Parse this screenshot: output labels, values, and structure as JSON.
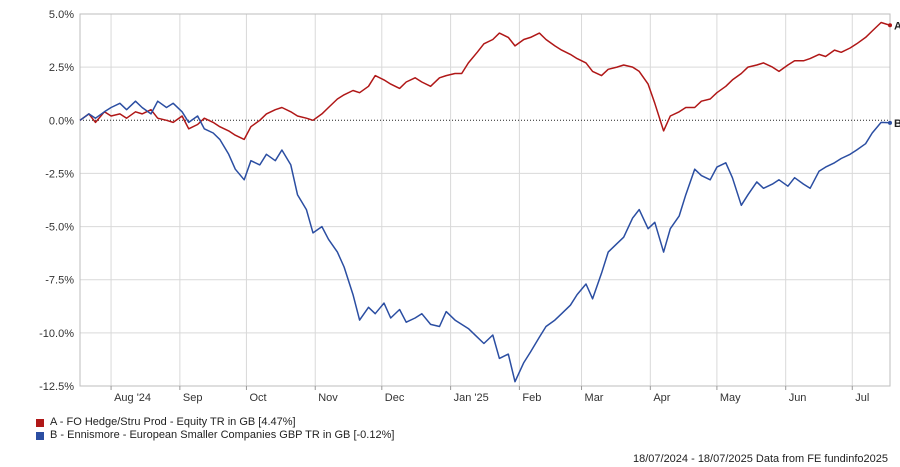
{
  "chart_data": {
    "type": "line",
    "title": "",
    "xlabel": "",
    "ylabel": "",
    "ylim": [
      -12.5,
      5.0
    ],
    "y_ticks": [
      {
        "value": 5.0,
        "label": "5.0%"
      },
      {
        "value": 2.5,
        "label": "2.5%"
      },
      {
        "value": 0.0,
        "label": "0.0%"
      },
      {
        "value": -2.5,
        "label": "-2.5%"
      },
      {
        "value": -5.0,
        "label": "-5.0%"
      },
      {
        "value": -7.5,
        "label": "-7.5%"
      },
      {
        "value": -10.0,
        "label": "-10.0%"
      },
      {
        "value": -12.5,
        "label": "-12.5%"
      }
    ],
    "x_range": [
      "2024-07-18",
      "2025-07-18"
    ],
    "x_ticks": [
      {
        "date": "2024-08-01",
        "label": "Aug '24"
      },
      {
        "date": "2024-09-01",
        "label": "Sep"
      },
      {
        "date": "2024-10-01",
        "label": "Oct"
      },
      {
        "date": "2024-11-01",
        "label": "Nov"
      },
      {
        "date": "2024-12-01",
        "label": "Dec"
      },
      {
        "date": "2025-01-01",
        "label": "Jan '25"
      },
      {
        "date": "2025-02-01",
        "label": "Feb"
      },
      {
        "date": "2025-03-01",
        "label": "Mar"
      },
      {
        "date": "2025-04-01",
        "label": "Apr"
      },
      {
        "date": "2025-05-01",
        "label": "May"
      },
      {
        "date": "2025-06-01",
        "label": "Jun"
      },
      {
        "date": "2025-07-01",
        "label": "Jul"
      }
    ],
    "grid": true,
    "zero_line": "dotted",
    "legend_position": "bottom-left",
    "series": [
      {
        "id": "A",
        "name": "A - FO Hedge/Stru Prod - Equity TR in GB [4.47%]",
        "end_label": "A",
        "color": "#b01717",
        "x": [
          "2024-07-18",
          "2024-07-22",
          "2024-07-25",
          "2024-07-29",
          "2024-08-01",
          "2024-08-05",
          "2024-08-08",
          "2024-08-12",
          "2024-08-15",
          "2024-08-19",
          "2024-08-22",
          "2024-08-26",
          "2024-08-29",
          "2024-09-02",
          "2024-09-05",
          "2024-09-09",
          "2024-09-12",
          "2024-09-16",
          "2024-09-19",
          "2024-09-23",
          "2024-09-26",
          "2024-09-30",
          "2024-10-03",
          "2024-10-07",
          "2024-10-10",
          "2024-10-14",
          "2024-10-17",
          "2024-10-21",
          "2024-10-24",
          "2024-10-28",
          "2024-10-31",
          "2024-11-04",
          "2024-11-07",
          "2024-11-11",
          "2024-11-14",
          "2024-11-18",
          "2024-11-21",
          "2024-11-25",
          "2024-11-28",
          "2024-12-02",
          "2024-12-05",
          "2024-12-09",
          "2024-12-12",
          "2024-12-16",
          "2024-12-19",
          "2024-12-23",
          "2024-12-27",
          "2024-12-30",
          "2025-01-03",
          "2025-01-06",
          "2025-01-09",
          "2025-01-13",
          "2025-01-16",
          "2025-01-20",
          "2025-01-23",
          "2025-01-27",
          "2025-01-30",
          "2025-02-03",
          "2025-02-06",
          "2025-02-10",
          "2025-02-13",
          "2025-02-17",
          "2025-02-20",
          "2025-02-24",
          "2025-02-27",
          "2025-03-03",
          "2025-03-06",
          "2025-03-10",
          "2025-03-13",
          "2025-03-17",
          "2025-03-20",
          "2025-03-24",
          "2025-03-27",
          "2025-03-31",
          "2025-04-03",
          "2025-04-07",
          "2025-04-10",
          "2025-04-14",
          "2025-04-17",
          "2025-04-21",
          "2025-04-24",
          "2025-04-28",
          "2025-05-01",
          "2025-05-05",
          "2025-05-08",
          "2025-05-12",
          "2025-05-15",
          "2025-05-19",
          "2025-05-22",
          "2025-05-26",
          "2025-05-29",
          "2025-06-02",
          "2025-06-05",
          "2025-06-09",
          "2025-06-12",
          "2025-06-16",
          "2025-06-19",
          "2025-06-23",
          "2025-06-26",
          "2025-06-30",
          "2025-07-03",
          "2025-07-07",
          "2025-07-10",
          "2025-07-14",
          "2025-07-18"
        ],
        "values": [
          0.0,
          0.3,
          -0.1,
          0.4,
          0.2,
          0.3,
          0.1,
          0.4,
          0.3,
          0.5,
          0.1,
          0.0,
          -0.1,
          0.2,
          -0.4,
          -0.2,
          0.1,
          -0.1,
          -0.3,
          -0.5,
          -0.7,
          -0.9,
          -0.3,
          0.0,
          0.3,
          0.5,
          0.6,
          0.4,
          0.2,
          0.1,
          0.0,
          0.3,
          0.6,
          1.0,
          1.2,
          1.4,
          1.3,
          1.6,
          2.1,
          1.9,
          1.7,
          1.5,
          1.8,
          2.0,
          1.8,
          1.6,
          2.0,
          2.1,
          2.2,
          2.2,
          2.7,
          3.2,
          3.6,
          3.8,
          4.1,
          3.9,
          3.5,
          3.8,
          3.9,
          4.1,
          3.8,
          3.5,
          3.3,
          3.1,
          2.9,
          2.7,
          2.3,
          2.1,
          2.4,
          2.5,
          2.6,
          2.5,
          2.3,
          1.7,
          0.8,
          -0.5,
          0.2,
          0.4,
          0.6,
          0.6,
          0.9,
          1.0,
          1.3,
          1.6,
          1.9,
          2.2,
          2.5,
          2.6,
          2.7,
          2.5,
          2.3,
          2.6,
          2.8,
          2.8,
          2.9,
          3.1,
          3.0,
          3.3,
          3.2,
          3.4,
          3.6,
          3.9,
          4.2,
          4.6,
          4.47
        ]
      },
      {
        "id": "B",
        "name": "B - Ennismore - European Smaller Companies GBP TR in GB [-0.12%]",
        "end_label": "B",
        "color": "#2b4ea2",
        "x": [
          "2024-07-18",
          "2024-07-22",
          "2024-07-25",
          "2024-07-29",
          "2024-08-01",
          "2024-08-05",
          "2024-08-08",
          "2024-08-12",
          "2024-08-15",
          "2024-08-19",
          "2024-08-22",
          "2024-08-26",
          "2024-08-29",
          "2024-09-02",
          "2024-09-05",
          "2024-09-09",
          "2024-09-12",
          "2024-09-16",
          "2024-09-19",
          "2024-09-23",
          "2024-09-26",
          "2024-09-30",
          "2024-10-03",
          "2024-10-07",
          "2024-10-10",
          "2024-10-14",
          "2024-10-17",
          "2024-10-21",
          "2024-10-24",
          "2024-10-28",
          "2024-10-31",
          "2024-11-04",
          "2024-11-07",
          "2024-11-11",
          "2024-11-14",
          "2024-11-18",
          "2024-11-21",
          "2024-11-25",
          "2024-11-28",
          "2024-12-02",
          "2024-12-05",
          "2024-12-09",
          "2024-12-12",
          "2024-12-16",
          "2024-12-19",
          "2024-12-23",
          "2024-12-27",
          "2024-12-30",
          "2025-01-03",
          "2025-01-06",
          "2025-01-09",
          "2025-01-13",
          "2025-01-16",
          "2025-01-20",
          "2025-01-23",
          "2025-01-27",
          "2025-01-30",
          "2025-02-03",
          "2025-02-06",
          "2025-02-10",
          "2025-02-13",
          "2025-02-17",
          "2025-02-20",
          "2025-02-24",
          "2025-02-27",
          "2025-03-03",
          "2025-03-06",
          "2025-03-10",
          "2025-03-13",
          "2025-03-17",
          "2025-03-20",
          "2025-03-24",
          "2025-03-27",
          "2025-03-31",
          "2025-04-03",
          "2025-04-07",
          "2025-04-10",
          "2025-04-14",
          "2025-04-17",
          "2025-04-21",
          "2025-04-24",
          "2025-04-28",
          "2025-05-01",
          "2025-05-05",
          "2025-05-08",
          "2025-05-12",
          "2025-05-15",
          "2025-05-19",
          "2025-05-22",
          "2025-05-26",
          "2025-05-29",
          "2025-06-02",
          "2025-06-05",
          "2025-06-09",
          "2025-06-12",
          "2025-06-16",
          "2025-06-19",
          "2025-06-23",
          "2025-06-26",
          "2025-06-30",
          "2025-07-03",
          "2025-07-07",
          "2025-07-10",
          "2025-07-14",
          "2025-07-18"
        ],
        "values": [
          0.0,
          0.3,
          0.1,
          0.4,
          0.6,
          0.8,
          0.5,
          0.9,
          0.6,
          0.3,
          0.9,
          0.6,
          0.8,
          0.4,
          -0.1,
          0.2,
          -0.4,
          -0.6,
          -0.9,
          -1.6,
          -2.3,
          -2.8,
          -1.9,
          -2.1,
          -1.6,
          -1.9,
          -1.4,
          -2.1,
          -3.5,
          -4.2,
          -5.3,
          -5.0,
          -5.6,
          -6.2,
          -6.9,
          -8.2,
          -9.4,
          -8.8,
          -9.1,
          -8.6,
          -9.3,
          -8.9,
          -9.5,
          -9.3,
          -9.1,
          -9.6,
          -9.7,
          -9.0,
          -9.4,
          -9.6,
          -9.8,
          -10.2,
          -10.5,
          -10.1,
          -11.2,
          -11.0,
          -12.3,
          -11.4,
          -10.9,
          -10.2,
          -9.7,
          -9.4,
          -9.1,
          -8.7,
          -8.2,
          -7.7,
          -8.4,
          -7.2,
          -6.2,
          -5.8,
          -5.5,
          -4.6,
          -4.2,
          -5.1,
          -4.8,
          -6.2,
          -5.1,
          -4.5,
          -3.5,
          -2.3,
          -2.6,
          -2.8,
          -2.2,
          -2.0,
          -2.7,
          -4.0,
          -3.5,
          -2.9,
          -3.2,
          -3.0,
          -2.8,
          -3.1,
          -2.7,
          -3.0,
          -3.2,
          -2.4,
          -2.2,
          -2.0,
          -1.8,
          -1.6,
          -1.4,
          -1.1,
          -0.6,
          -0.1,
          -0.12
        ]
      }
    ]
  },
  "footer": {
    "text": "18/07/2024 - 18/07/2025 Data from FE fundinfo2025"
  }
}
